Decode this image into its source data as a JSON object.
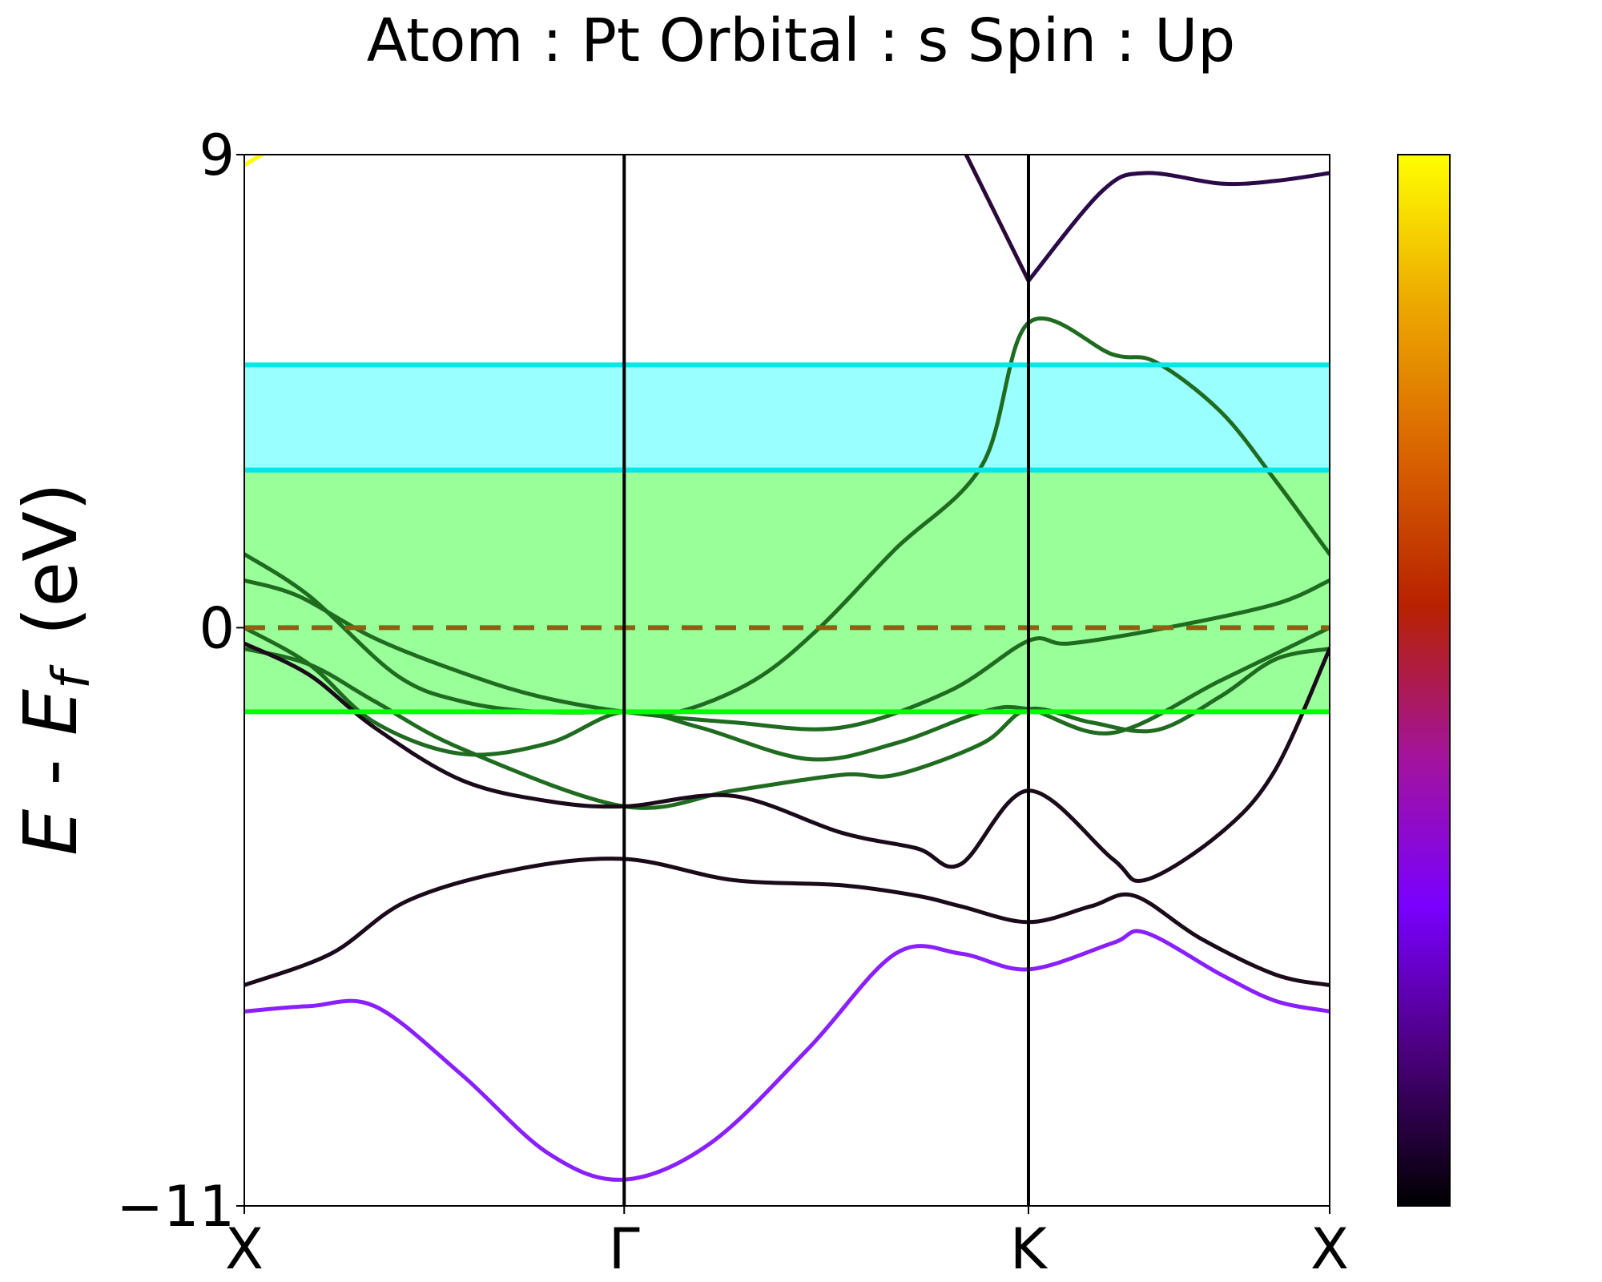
{
  "chart_data": {
    "type": "line",
    "title": "Atom : Pt   Orbital : s  Spin : Up",
    "ylabel": "E - E_f  (eV)",
    "ylabel_parts": {
      "e": "E",
      "dash": " - ",
      "ef": "E",
      "ef_sub": "f",
      "unit": "(eV)"
    },
    "xlabel": "",
    "ylim": [
      -11,
      9
    ],
    "yticks": [
      {
        "value": 9,
        "label": "9"
      },
      {
        "value": 0,
        "label": "0"
      },
      {
        "value": -11,
        "label": "−11"
      }
    ],
    "kpoints": [
      {
        "pos": 0.0,
        "label": "X"
      },
      {
        "pos": 0.35,
        "label": "Γ"
      },
      {
        "pos": 0.7225,
        "label": "K"
      },
      {
        "pos": 1.0,
        "label": "X"
      }
    ],
    "fermi_level": {
      "value": 0,
      "color": "#8c6010",
      "style": "dashed"
    },
    "shaded_regions": [
      {
        "ymin": 3.0,
        "ymax": 5.0,
        "fill": "#99ffff",
        "edge": "#00e8e8"
      },
      {
        "ymin": -1.6,
        "ymax": 3.0,
        "fill": "#99ff99",
        "edge_top": "#00e8e8",
        "edge_bottom": "#00ff00"
      }
    ],
    "colorbar": {
      "colormap": "gnuplot",
      "stops": [
        "#000000",
        "#4a007a",
        "#7a00ff",
        "#a3149a",
        "#b82200",
        "#d96300",
        "#eda800",
        "#ffff00"
      ]
    },
    "series": [
      {
        "color": "#ffff00",
        "points": [
          [
            0,
            8.8
          ],
          [
            0.02,
            9.05
          ]
        ]
      },
      {
        "color": "#2b0838",
        "points": [
          [
            0.665,
            9.0
          ],
          [
            0.7225,
            6.6
          ]
        ]
      },
      {
        "color": "#2b0a4a",
        "points": [
          [
            0.7225,
            6.6
          ],
          [
            0.79,
            8.3
          ],
          [
            0.83,
            8.65
          ],
          [
            0.9,
            8.45
          ],
          [
            0.95,
            8.5
          ],
          [
            1.0,
            8.65
          ]
        ]
      },
      {
        "color": "#1f6b1f",
        "points": [
          [
            0,
            1.4
          ],
          [
            0.06,
            0.6
          ],
          [
            0.14,
            -0.9
          ],
          [
            0.2,
            -1.4
          ],
          [
            0.27,
            -1.6
          ],
          [
            0.35,
            -1.6
          ],
          [
            0.4,
            -1.6
          ],
          [
            0.47,
            -1.0
          ],
          [
            0.53,
            0.0
          ],
          [
            0.6,
            1.5
          ],
          [
            0.68,
            3.1
          ],
          [
            0.7225,
            5.8
          ],
          [
            0.8,
            5.2
          ],
          [
            0.84,
            5.05
          ],
          [
            0.9,
            4.1
          ],
          [
            0.95,
            2.8
          ],
          [
            1.0,
            1.4
          ]
        ]
      },
      {
        "color": "#1f6b1f",
        "points": [
          [
            0,
            0.9
          ],
          [
            0.05,
            0.6
          ],
          [
            0.12,
            -0.2
          ],
          [
            0.2,
            -0.85
          ],
          [
            0.27,
            -1.3
          ],
          [
            0.35,
            -1.6
          ],
          [
            0.45,
            -1.8
          ],
          [
            0.55,
            -1.9
          ],
          [
            0.65,
            -1.2
          ],
          [
            0.7225,
            -0.25
          ],
          [
            0.76,
            -0.3
          ],
          [
            0.85,
            0.0
          ],
          [
            0.95,
            0.45
          ],
          [
            1.0,
            0.9
          ]
        ]
      },
      {
        "color": "#1f6b1f",
        "points": [
          [
            0,
            -0.4
          ],
          [
            0.06,
            -0.7
          ],
          [
            0.12,
            -1.4
          ],
          [
            0.2,
            -2.3
          ],
          [
            0.35,
            -3.4
          ],
          [
            0.45,
            -3.1
          ],
          [
            0.55,
            -2.8
          ],
          [
            0.6,
            -2.8
          ],
          [
            0.68,
            -2.2
          ],
          [
            0.7225,
            -1.55
          ],
          [
            0.78,
            -1.8
          ],
          [
            0.84,
            -1.95
          ],
          [
            0.9,
            -1.3
          ],
          [
            0.95,
            -0.6
          ],
          [
            1.0,
            -0.4
          ]
        ]
      },
      {
        "color": "#1f6b1f",
        "points": [
          [
            0,
            0.0
          ],
          [
            0.06,
            -0.7
          ],
          [
            0.12,
            -1.8
          ],
          [
            0.2,
            -2.4
          ],
          [
            0.28,
            -2.2
          ],
          [
            0.35,
            -1.6
          ],
          [
            0.42,
            -1.9
          ],
          [
            0.52,
            -2.5
          ],
          [
            0.6,
            -2.2
          ],
          [
            0.68,
            -1.6
          ],
          [
            0.7225,
            -1.55
          ],
          [
            0.8,
            -2.0
          ],
          [
            0.9,
            -1.0
          ],
          [
            1.0,
            0.0
          ]
        ]
      },
      {
        "color": "#1a0a1a",
        "points": [
          [
            0,
            -0.3
          ],
          [
            0.06,
            -0.9
          ],
          [
            0.12,
            -1.9
          ],
          [
            0.2,
            -2.9
          ],
          [
            0.28,
            -3.3
          ],
          [
            0.35,
            -3.4
          ],
          [
            0.45,
            -3.2
          ],
          [
            0.55,
            -3.9
          ],
          [
            0.62,
            -4.2
          ],
          [
            0.66,
            -4.5
          ],
          [
            0.7225,
            -3.1
          ],
          [
            0.8,
            -4.4
          ],
          [
            0.83,
            -4.8
          ],
          [
            0.9,
            -3.9
          ],
          [
            0.95,
            -2.7
          ],
          [
            1.0,
            -0.4
          ]
        ]
      },
      {
        "color": "#1a0a1a",
        "points": [
          [
            0,
            -6.8
          ],
          [
            0.08,
            -6.2
          ],
          [
            0.15,
            -5.2
          ],
          [
            0.25,
            -4.6
          ],
          [
            0.35,
            -4.4
          ],
          [
            0.45,
            -4.8
          ],
          [
            0.55,
            -4.9
          ],
          [
            0.62,
            -5.1
          ],
          [
            0.66,
            -5.3
          ],
          [
            0.7225,
            -5.6
          ],
          [
            0.78,
            -5.3
          ],
          [
            0.82,
            -5.1
          ],
          [
            0.88,
            -5.9
          ],
          [
            0.95,
            -6.6
          ],
          [
            1.0,
            -6.8
          ]
        ]
      },
      {
        "color": "#8a1fff",
        "points": [
          [
            0,
            -7.3
          ],
          [
            0.06,
            -7.2
          ],
          [
            0.12,
            -7.2
          ],
          [
            0.2,
            -8.5
          ],
          [
            0.28,
            -10.0
          ],
          [
            0.35,
            -10.5
          ],
          [
            0.43,
            -9.8
          ],
          [
            0.52,
            -8.0
          ],
          [
            0.6,
            -6.2
          ],
          [
            0.66,
            -6.2
          ],
          [
            0.7225,
            -6.5
          ],
          [
            0.8,
            -6.0
          ],
          [
            0.83,
            -5.8
          ],
          [
            0.9,
            -6.6
          ],
          [
            0.95,
            -7.1
          ],
          [
            1.0,
            -7.3
          ]
        ]
      }
    ]
  }
}
